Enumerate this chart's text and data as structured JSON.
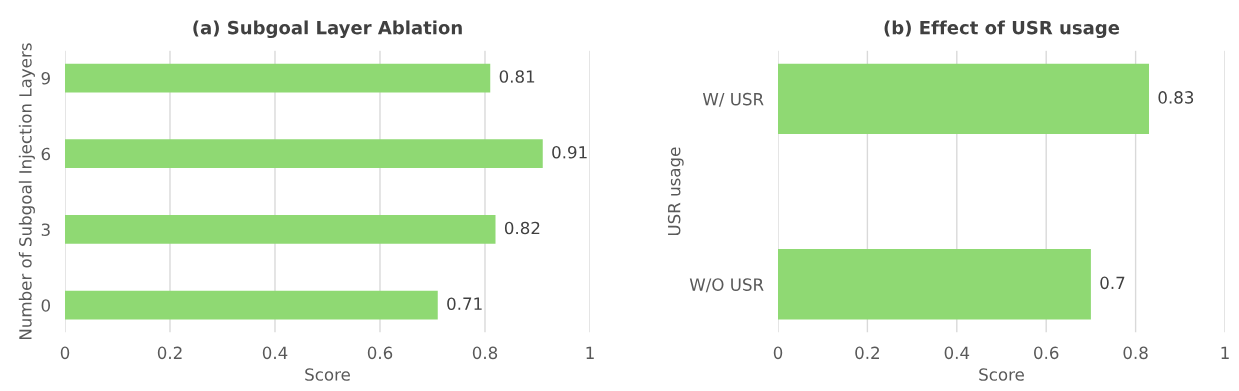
{
  "chart_data": [
    {
      "type": "bar",
      "orientation": "horizontal",
      "title": "(a) Subgoal Layer Ablation",
      "ylabel": "Number of Subgoal Injection Layers",
      "xlabel": "Score",
      "categories": [
        "9",
        "6",
        "3",
        "0"
      ],
      "values": [
        0.81,
        0.91,
        0.82,
        0.71
      ],
      "color": "#8fd973",
      "xlim": [
        0,
        1
      ],
      "xticks": [
        0,
        0.2,
        0.4,
        0.6,
        0.8,
        1
      ],
      "grid": "x",
      "data_labels": true
    },
    {
      "type": "bar",
      "orientation": "horizontal",
      "title": "(b) Effect of USR usage",
      "ylabel": "USR usage",
      "xlabel": "Score",
      "categories": [
        "W/ USR",
        "W/O USR"
      ],
      "values": [
        0.83,
        0.7
      ],
      "color": "#8fd973",
      "xlim": [
        0,
        1
      ],
      "xticks": [
        0,
        0.2,
        0.4,
        0.6,
        0.8,
        1
      ],
      "grid": "x",
      "data_labels": true
    }
  ]
}
